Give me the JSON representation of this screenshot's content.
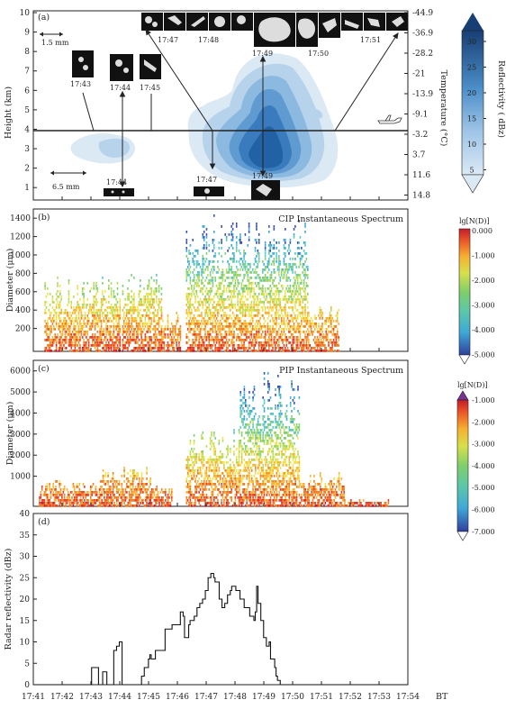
{
  "colors": {
    "refl": [
      "#dbe9f5",
      "#c0d8ee",
      "#9ec5e6",
      "#77acd8",
      "#4c8ec8",
      "#2c6eb0",
      "#1a4f8e"
    ],
    "nd": [
      "#3b50b0",
      "#3fa9d8",
      "#5cc8c8",
      "#7fcf7a",
      "#b8dc57",
      "#f1e34d",
      "#f9b234",
      "#f07f26",
      "#e6402a",
      "#cc1f2b"
    ]
  },
  "panel_a": {
    "label": "(a)",
    "ylabel": "Height (km)",
    "y2label": "Temperature (°C)",
    "height_ticks": [
      "10",
      "9",
      "8",
      "7",
      "6",
      "5",
      "4",
      "3",
      "2",
      "1"
    ],
    "temp_ticks": [
      "-44.9",
      "-36.9",
      "-28.2",
      "-21",
      "-13.9",
      "-9.1",
      "-3.2",
      "3.7",
      "11.6",
      "14.8"
    ],
    "scale_top": "1.5 mm",
    "scale_bottom": "6.5 mm",
    "top_image_times": [
      "17:47",
      "17:48",
      "17:49",
      "17:50",
      "17:51"
    ],
    "left_image_times": [
      "17:43",
      "17:44",
      "17:45"
    ],
    "bottom_image_times": [
      "17:44",
      "17:47",
      "17:49"
    ],
    "colorbar_label": "Reflectivity ( dBz)",
    "colorbar_ticks": [
      "30",
      "25",
      "20",
      "15",
      "10",
      "5"
    ]
  },
  "panel_b": {
    "label": "(b)",
    "title": "CIP Instantaneous Spectrum",
    "ylabel": "Diameter (μm)",
    "yticks": [
      "1400",
      "1200",
      "1000",
      "800",
      "600",
      "400",
      "200"
    ],
    "colorbar_label": "lg[N(D)]",
    "colorbar_ticks": [
      "0.000",
      "-1.000",
      "-2.000",
      "-3.000",
      "-4.000",
      "-5.000"
    ]
  },
  "panel_c": {
    "label": "(c)",
    "title": "PIP Instantaneous Spectrum",
    "ylabel": "Diameter (μm)",
    "yticks": [
      "6000",
      "5000",
      "4000",
      "3000",
      "2000",
      "1000"
    ],
    "colorbar_label": "lg[N(D)]",
    "colorbar_ticks": [
      "-1.000",
      "-2.000",
      "-3.000",
      "-4.000",
      "-5.000",
      "-6.000",
      "-7.000"
    ]
  },
  "chart_data": {
    "type": "line",
    "label": "(d)",
    "ylabel": "Radar reflectivity (dBz)",
    "xlabel_suffix": "BT",
    "x_ticks": [
      "17:41",
      "17:42",
      "17:43",
      "17:44",
      "17:45",
      "17:46",
      "17:47",
      "17:48",
      "17:49",
      "17:50",
      "17:51",
      "17:52",
      "17:53",
      "17:54"
    ],
    "ylim": [
      0,
      40
    ],
    "y_ticks": [
      0,
      5,
      10,
      15,
      20,
      25,
      30,
      35,
      40
    ],
    "x_unit": "minutes after 17:41",
    "x": [
      0,
      2.05,
      2.1,
      2.3,
      2.35,
      2.45,
      2.5,
      2.55,
      2.65,
      2.72,
      2.9,
      3.0,
      3.1,
      3.15,
      3.2,
      3.3,
      3.35,
      3.5,
      3.55,
      3.6,
      3.8,
      3.9,
      4.0,
      4.15,
      4.2,
      4.25,
      4.4,
      4.6,
      4.75,
      5.0,
      5.3,
      5.4,
      5.45,
      5.6,
      5.65,
      5.8,
      5.9,
      6.0,
      6.1,
      6.2,
      6.3,
      6.4,
      6.5,
      6.55,
      6.7,
      6.8,
      6.9,
      7.0,
      7.1,
      7.15,
      7.3,
      7.45,
      7.6,
      7.8,
      7.95,
      8.0,
      8.05,
      8.1,
      8.2,
      8.3,
      8.4,
      8.5,
      8.55,
      8.7,
      8.75,
      8.8,
      8.9,
      9.0,
      9.1,
      9.2,
      9.25,
      9.35,
      9.45,
      9.55,
      9.6,
      9.65,
      9.7,
      9.75,
      9.85,
      9.9,
      10.0,
      10.05,
      10.1,
      10.15,
      13.5
    ],
    "values": [
      0,
      0,
      4,
      4,
      0,
      0,
      3,
      3,
      0,
      0,
      8,
      9,
      10,
      10,
      0,
      0,
      0,
      0,
      0,
      0,
      0,
      2,
      4,
      6,
      7,
      6,
      8,
      8,
      13,
      14,
      17,
      16,
      11,
      14,
      15,
      16,
      18,
      19,
      20,
      22,
      25,
      26,
      25,
      24,
      20,
      18,
      19,
      21,
      22,
      23,
      22,
      20,
      18,
      16,
      15,
      17,
      23,
      19,
      15,
      11,
      9,
      10,
      6,
      4,
      2,
      1,
      0,
      0,
      0,
      0,
      0,
      0,
      0,
      0,
      0,
      0,
      0,
      0,
      0,
      0,
      0,
      0,
      0,
      0,
      0
    ]
  }
}
